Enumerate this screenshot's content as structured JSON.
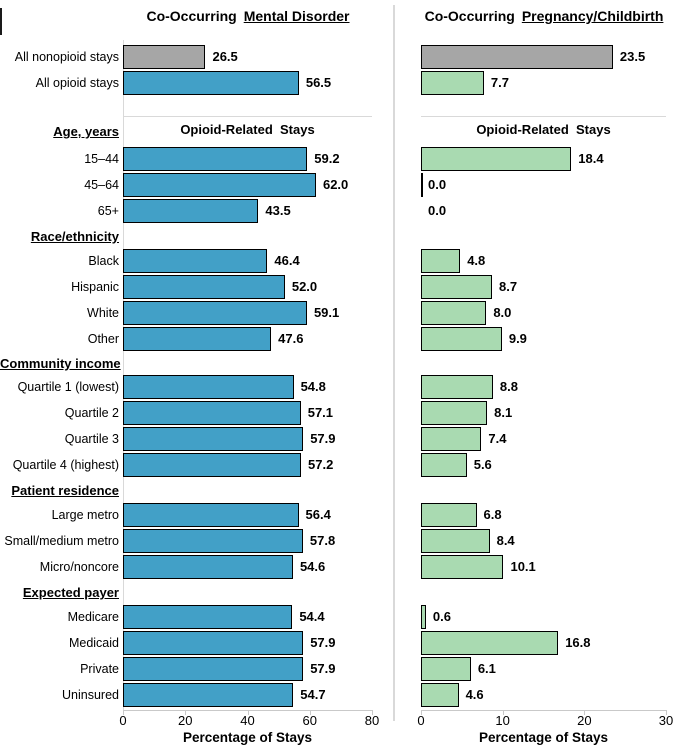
{
  "chart_data": {
    "type": "bar",
    "orientation": "horizontal",
    "grid": false,
    "panels": [
      {
        "title_prefix": "Co-Occurring",
        "title_underlined": "Mental Disorder",
        "inner_header": "Opioid-Related  Stays",
        "xlabel": "Percentage of Stays",
        "xlim": [
          0,
          80
        ],
        "xticks": [
          0,
          20,
          40,
          60,
          80
        ],
        "bar_color": "#42A0C7"
      },
      {
        "title_prefix": "Co-Occurring",
        "title_underlined": "Pregnancy/Childbirth",
        "inner_header": "Opioid-Related  Stays",
        "xlabel": "Percentage of Stays",
        "xlim": [
          0,
          30
        ],
        "xticks": [
          0,
          10,
          20,
          30
        ],
        "bar_color": "#A9DAB1"
      }
    ],
    "colors": {
      "nonopioid_gray": "#A6A6A6",
      "bar_border": "#000000",
      "axis_line": "#C9C9C9",
      "separator": "#D9D9D9"
    },
    "sections": [
      {
        "header": "",
        "rows": [
          {
            "label": "All nonopioid stays",
            "values": [
              26.5,
              23.5
            ],
            "gray": true
          },
          {
            "label": "All opioid stays",
            "values": [
              56.5,
              7.7
            ]
          }
        ]
      },
      {
        "header": "Age, years",
        "show_inner_header": true,
        "rows": [
          {
            "label": "15–44",
            "values": [
              59.2,
              18.4
            ]
          },
          {
            "label": "45–64",
            "values": [
              62.0,
              0.0
            ],
            "zero_edge_right": true
          },
          {
            "label": "65+",
            "values": [
              43.5,
              0.0
            ]
          }
        ]
      },
      {
        "header": "Race/ethnicity",
        "rows": [
          {
            "label": "Black",
            "values": [
              46.4,
              4.8
            ]
          },
          {
            "label": "Hispanic",
            "values": [
              52.0,
              8.7
            ]
          },
          {
            "label": "White",
            "values": [
              59.1,
              8.0
            ]
          },
          {
            "label": "Other",
            "values": [
              47.6,
              9.9
            ]
          }
        ]
      },
      {
        "header": "Community income",
        "rows": [
          {
            "label": "Quartile 1 (lowest)",
            "values": [
              54.8,
              8.8
            ]
          },
          {
            "label": "Quartile 2",
            "values": [
              57.1,
              8.1
            ]
          },
          {
            "label": "Quartile 3",
            "values": [
              57.9,
              7.4
            ]
          },
          {
            "label": "Quartile 4 (highest)",
            "values": [
              57.2,
              5.6
            ]
          }
        ]
      },
      {
        "header": "Patient residence",
        "rows": [
          {
            "label": "Large metro",
            "values": [
              56.4,
              6.8
            ]
          },
          {
            "label": "Small/medium metro",
            "values": [
              57.8,
              8.4
            ]
          },
          {
            "label": "Micro/noncore",
            "values": [
              54.6,
              10.1
            ]
          }
        ]
      },
      {
        "header": "Expected payer",
        "rows": [
          {
            "label": "Medicare",
            "values": [
              54.4,
              0.6
            ]
          },
          {
            "label": "Medicaid",
            "values": [
              57.9,
              16.8
            ]
          },
          {
            "label": "Private",
            "values": [
              57.9,
              6.1
            ]
          },
          {
            "label": "Uninsured",
            "values": [
              54.7,
              4.6
            ]
          }
        ]
      }
    ]
  }
}
